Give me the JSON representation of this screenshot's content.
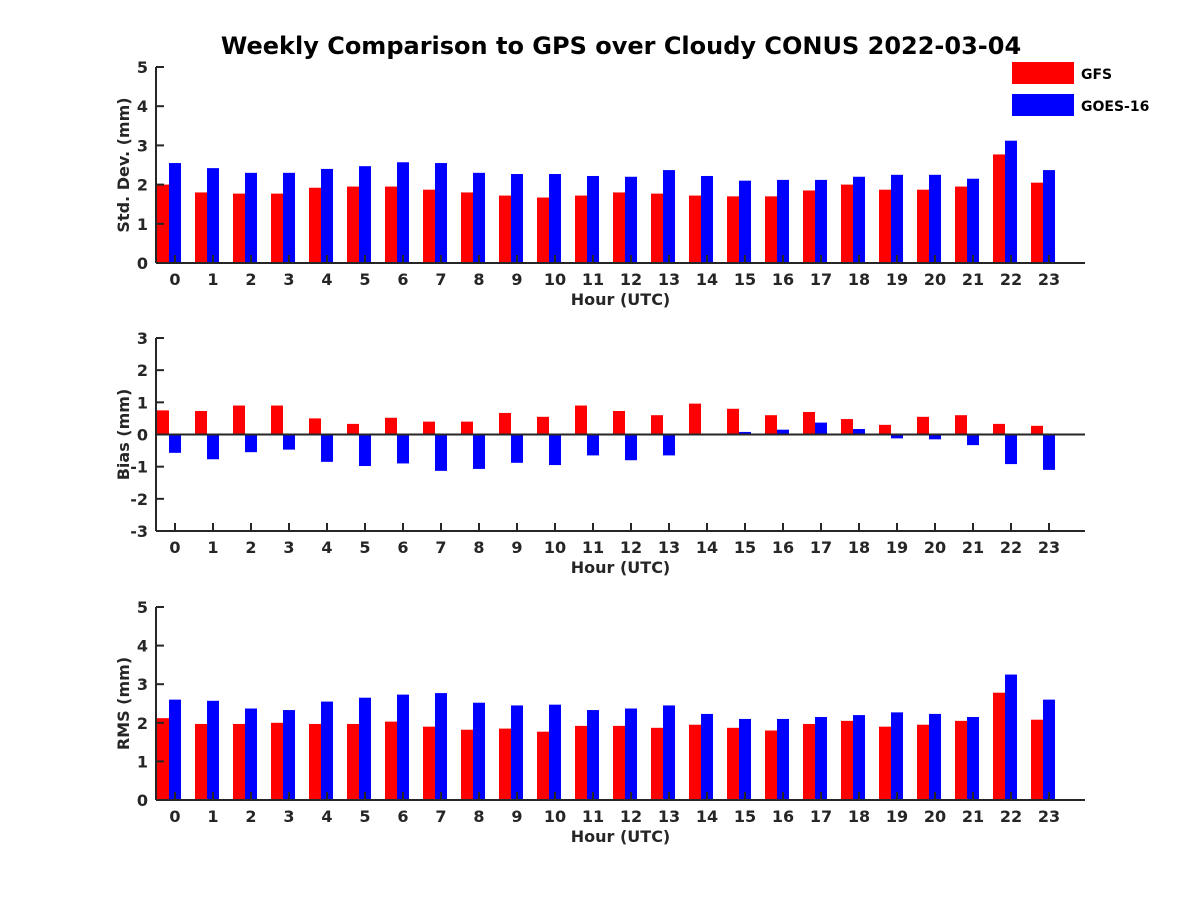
{
  "title": "Weekly Comparison to GPS over Cloudy CONUS 2022-03-04",
  "legend": {
    "placement": "top-right",
    "entries": [
      {
        "label": "GFS",
        "color": "#ff0000"
      },
      {
        "label": "GOES-16",
        "color": "#0000ff"
      }
    ]
  },
  "chart_data": [
    {
      "type": "bar",
      "xlabel": "Hour (UTC)",
      "ylabel": "Std. Dev. (mm)",
      "ylim": [
        0,
        5
      ],
      "yticks": [
        0,
        1,
        2,
        3,
        4,
        5
      ],
      "categories": [
        "0",
        "1",
        "2",
        "3",
        "4",
        "5",
        "6",
        "7",
        "8",
        "9",
        "10",
        "11",
        "12",
        "13",
        "14",
        "15",
        "16",
        "17",
        "18",
        "19",
        "20",
        "21",
        "22",
        "23"
      ],
      "series": [
        {
          "name": "GFS",
          "color": "#ff0000",
          "values": [
            2.0,
            1.8,
            1.77,
            1.77,
            1.92,
            1.95,
            1.95,
            1.87,
            1.8,
            1.72,
            1.67,
            1.72,
            1.8,
            1.77,
            1.72,
            1.7,
            1.7,
            1.85,
            2.0,
            1.87,
            1.87,
            1.95,
            2.77,
            2.05
          ]
        },
        {
          "name": "GOES-16",
          "color": "#0000ff",
          "values": [
            2.55,
            2.42,
            2.3,
            2.3,
            2.4,
            2.47,
            2.57,
            2.55,
            2.3,
            2.27,
            2.27,
            2.22,
            2.2,
            2.37,
            2.22,
            2.1,
            2.12,
            2.12,
            2.2,
            2.25,
            2.25,
            2.15,
            3.12,
            2.37
          ]
        }
      ]
    },
    {
      "type": "bar",
      "xlabel": "Hour (UTC)",
      "ylabel": "Bias (mm)",
      "ylim": [
        -3,
        3
      ],
      "yticks": [
        -3,
        -2,
        -1,
        0,
        1,
        2,
        3
      ],
      "categories": [
        "0",
        "1",
        "2",
        "3",
        "4",
        "5",
        "6",
        "7",
        "8",
        "9",
        "10",
        "11",
        "12",
        "13",
        "14",
        "15",
        "16",
        "17",
        "18",
        "19",
        "20",
        "21",
        "22",
        "23"
      ],
      "series": [
        {
          "name": "GFS",
          "color": "#ff0000",
          "values": [
            0.75,
            0.73,
            0.9,
            0.9,
            0.5,
            0.33,
            0.52,
            0.4,
            0.4,
            0.67,
            0.55,
            0.9,
            0.73,
            0.6,
            0.96,
            0.8,
            0.6,
            0.7,
            0.48,
            0.3,
            0.55,
            0.6,
            0.33,
            0.27
          ]
        },
        {
          "name": "GOES-16",
          "color": "#0000ff",
          "values": [
            -0.57,
            -0.77,
            -0.55,
            -0.47,
            -0.85,
            -0.98,
            -0.9,
            -1.13,
            -1.07,
            -0.88,
            -0.95,
            -0.65,
            -0.8,
            -0.65,
            0.0,
            0.08,
            0.15,
            0.37,
            0.17,
            -0.12,
            -0.15,
            -0.33,
            -0.92,
            -1.1
          ]
        }
      ]
    },
    {
      "type": "bar",
      "xlabel": "Hour (UTC)",
      "ylabel": "RMS (mm)",
      "ylim": [
        0,
        5
      ],
      "yticks": [
        0,
        1,
        2,
        3,
        4,
        5
      ],
      "categories": [
        "0",
        "1",
        "2",
        "3",
        "4",
        "5",
        "6",
        "7",
        "8",
        "9",
        "10",
        "11",
        "12",
        "13",
        "14",
        "15",
        "16",
        "17",
        "18",
        "19",
        "20",
        "21",
        "22",
        "23"
      ],
      "series": [
        {
          "name": "GFS",
          "color": "#ff0000",
          "values": [
            2.12,
            1.97,
            1.97,
            2.0,
            1.97,
            1.97,
            2.03,
            1.9,
            1.82,
            1.85,
            1.77,
            1.92,
            1.92,
            1.87,
            1.95,
            1.87,
            1.8,
            1.97,
            2.05,
            1.9,
            1.95,
            2.05,
            2.78,
            2.08
          ]
        },
        {
          "name": "GOES-16",
          "color": "#0000ff",
          "values": [
            2.6,
            2.57,
            2.37,
            2.33,
            2.55,
            2.65,
            2.73,
            2.77,
            2.52,
            2.45,
            2.47,
            2.33,
            2.37,
            2.45,
            2.23,
            2.1,
            2.1,
            2.15,
            2.2,
            2.27,
            2.23,
            2.15,
            3.25,
            2.6
          ]
        }
      ]
    }
  ]
}
